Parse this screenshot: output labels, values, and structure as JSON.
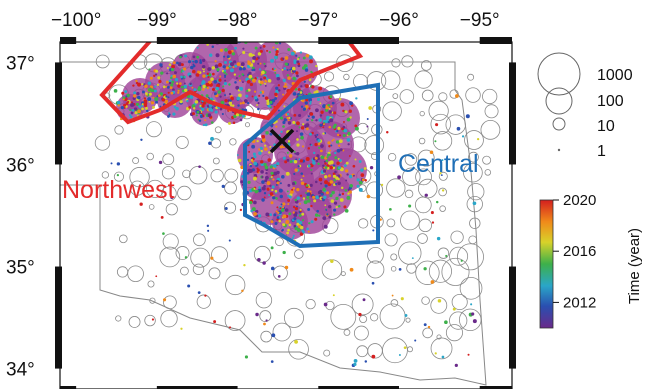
{
  "map": {
    "lon_ticks": [
      "−100°",
      "−99°",
      "−98°",
      "−97°",
      "−96°",
      "−95°"
    ],
    "lat_ticks": [
      "37°",
      "36°",
      "35°",
      "34°"
    ],
    "lon_values": [
      -100,
      -99,
      -98,
      -97,
      -96,
      -95
    ],
    "lat_values": [
      37,
      36,
      35,
      34
    ],
    "extent": {
      "lon_min": -100.2,
      "lon_max": -94.6,
      "lat_min": 33.8,
      "lat_max": 37.2
    },
    "regions": [
      {
        "name": "Northwest",
        "color": "#e32b2b"
      },
      {
        "name": "Central",
        "color": "#1f6fb6"
      }
    ],
    "marker": {
      "symbol": "×",
      "lon": -96.77,
      "lat": 36.19
    },
    "cluster_color": "#a0449a"
  },
  "legend": {
    "sizes": [
      {
        "label": "1000"
      },
      {
        "label": "100"
      },
      {
        "label": "10"
      },
      {
        "label": "1"
      }
    ]
  },
  "colorbar": {
    "title": "Time (year)",
    "ticks": [
      "2020",
      "2016",
      "2012"
    ],
    "tick_values": [
      2020,
      2016,
      2012
    ],
    "range": [
      2010,
      2020
    ],
    "colors": [
      "#6a2a8a",
      "#2a4fb0",
      "#2aa6c8",
      "#3db04a",
      "#d8d22a",
      "#f08a1a",
      "#d41f1f"
    ]
  }
}
